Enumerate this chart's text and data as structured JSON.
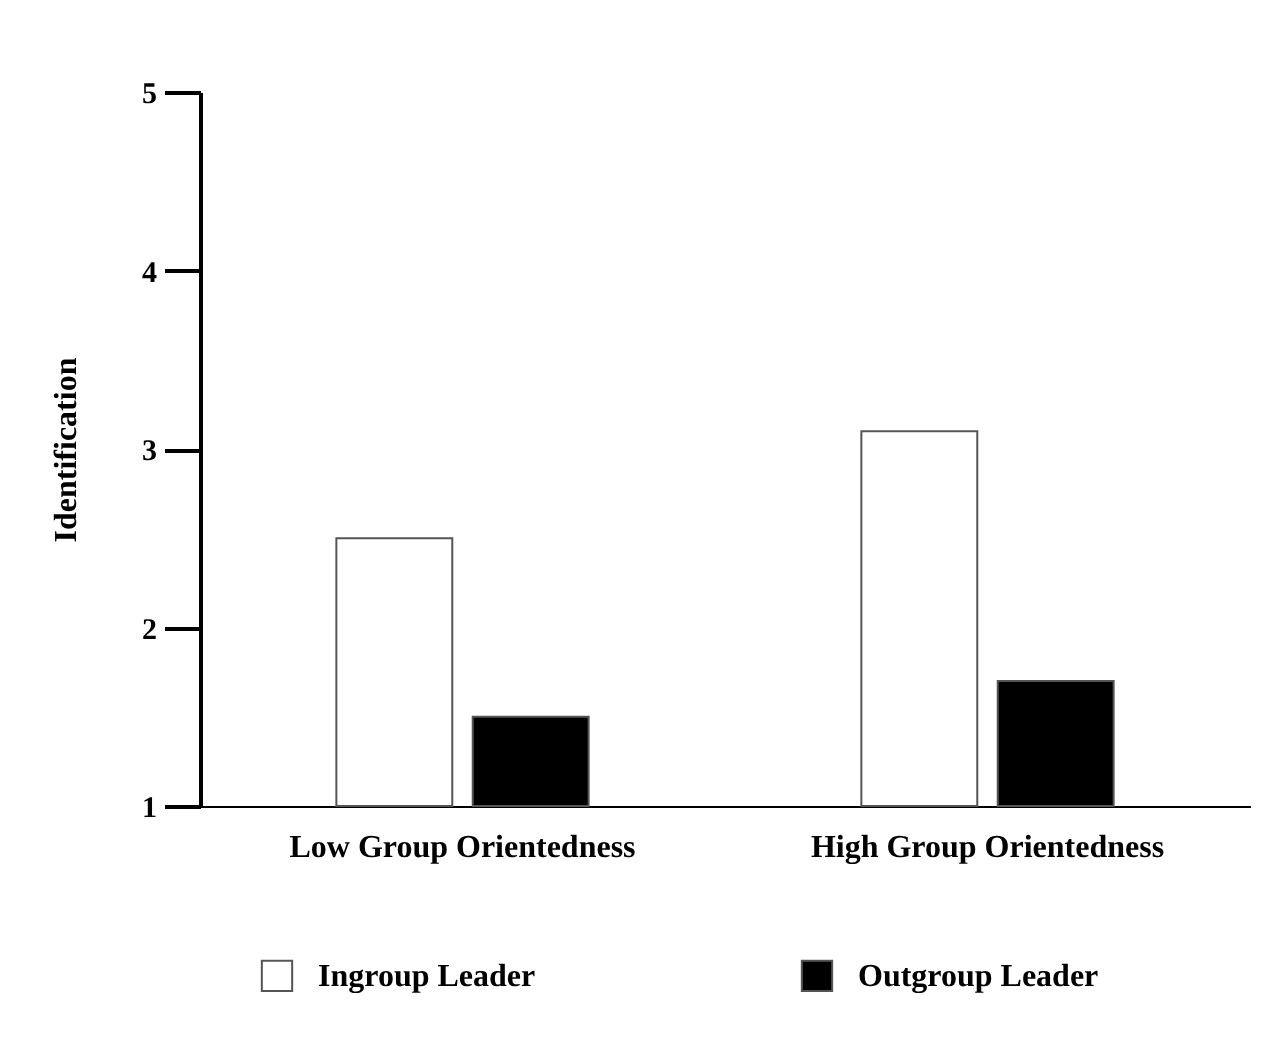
{
  "chart_data": {
    "type": "bar",
    "ylabel": "Identification",
    "categories": [
      "Low Group Orientedness",
      "High Group Orientedness"
    ],
    "series": [
      {
        "name": "Ingroup Leader",
        "color": "#ffffff",
        "values": [
          2.5,
          3.1
        ]
      },
      {
        "name": "Outgroup Leader",
        "color": "#000000",
        "values": [
          1.5,
          1.7
        ]
      }
    ],
    "ylim": [
      1,
      5
    ],
    "yticks": [
      1,
      2,
      3,
      4,
      5
    ],
    "legend": "bottom"
  }
}
